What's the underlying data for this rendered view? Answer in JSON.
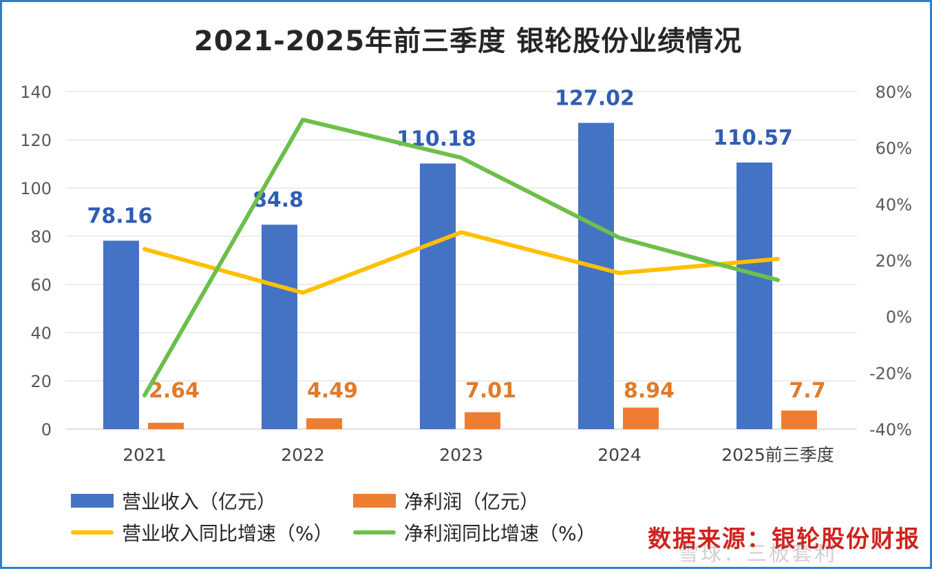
{
  "title": "2021-2025年前三季度 银轮股份业绩情况",
  "colors": {
    "revenue": "#4472c4",
    "profit": "#ed7d31",
    "revenue_growth": "#ffc000",
    "profit_growth": "#6cc04a",
    "revenue_label": "#2f5db6",
    "profit_label": "#e07b2a",
    "source": "#d0211c",
    "border": "#2f7fc9"
  },
  "chart_data": {
    "type": "bar",
    "categories": [
      "2021",
      "2022",
      "2023",
      "2024",
      "2025前三季度"
    ],
    "series": [
      {
        "name": "营业收入（亿元）",
        "type": "bar",
        "axis": "left",
        "values": [
          78.16,
          84.8,
          110.18,
          127.02,
          110.57
        ],
        "labels": [
          "78.16",
          "84.8",
          "110.18",
          "127.02",
          "110.57"
        ]
      },
      {
        "name": "净利润（亿元）",
        "type": "bar",
        "axis": "left",
        "values": [
          2.64,
          4.49,
          7.01,
          8.94,
          7.7
        ],
        "labels": [
          "2.64",
          "4.49",
          "7.01",
          "8.94",
          "7.7"
        ]
      },
      {
        "name": "营业收入同比增速（%）",
        "type": "line",
        "axis": "right",
        "values": [
          24,
          8.5,
          30,
          15.5,
          20.5
        ]
      },
      {
        "name": "净利润同比增速（%）",
        "type": "line",
        "axis": "right",
        "values": [
          -28,
          70,
          56.5,
          28,
          13
        ]
      }
    ],
    "y_left": {
      "ylim": [
        0,
        140
      ],
      "ticks": [
        "0",
        "20",
        "40",
        "60",
        "80",
        "100",
        "120",
        "140"
      ]
    },
    "y_right": {
      "ylim": [
        -40,
        80
      ],
      "ticks": [
        "-40%",
        "-20%",
        "0%",
        "20%",
        "40%",
        "60%",
        "80%"
      ]
    },
    "grid": true,
    "legend_position": "bottom"
  },
  "source_text": "数据来源：银轮股份财报",
  "watermark": "雪球：三板套利"
}
